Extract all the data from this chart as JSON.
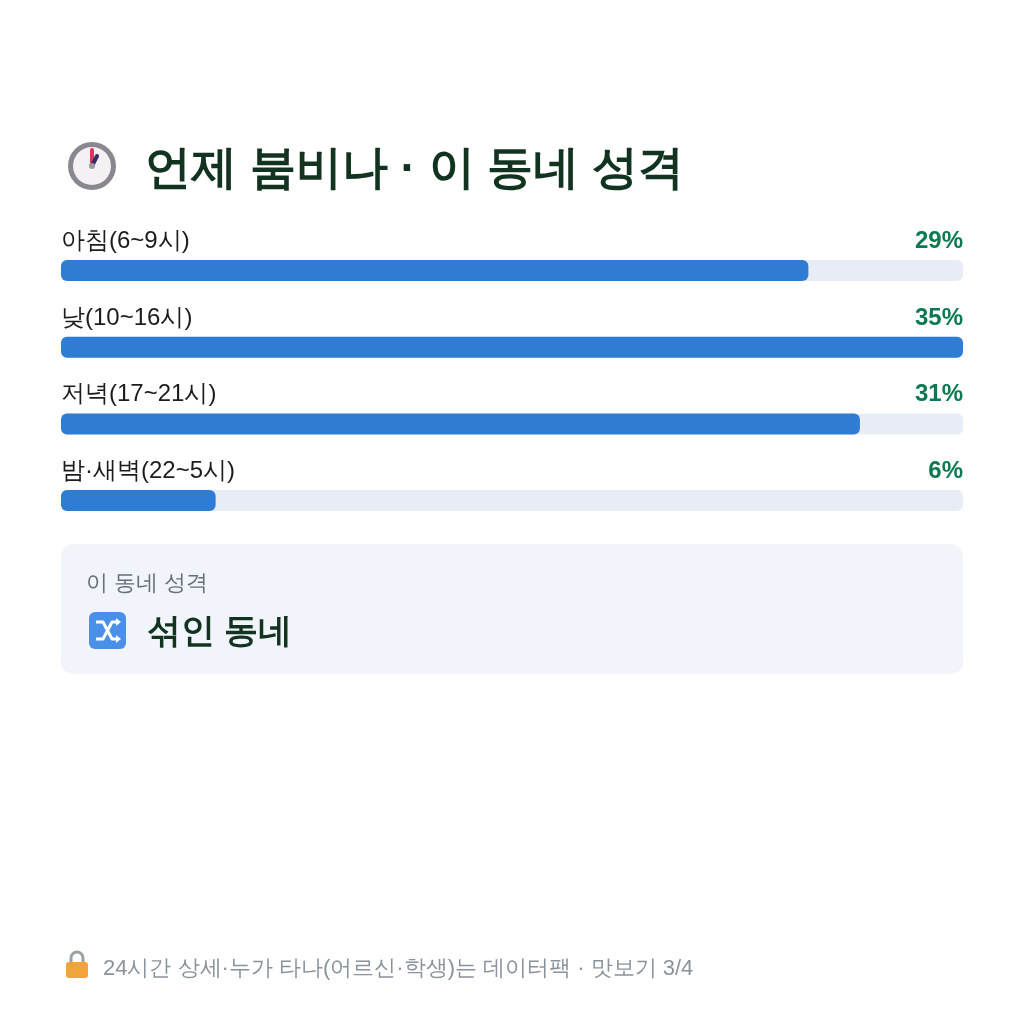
{
  "chart_data": {
    "type": "bar",
    "orientation": "horizontal",
    "title": "언제 붐비나 · 이 동네 성격",
    "categories": [
      "아침(6~9시)",
      "낮(10~16시)",
      "저녁(17~21시)",
      "밤·새벽(22~5시)"
    ],
    "values": [
      29,
      35,
      31,
      6
    ],
    "value_labels": [
      "29%",
      "35%",
      "31%",
      "6%"
    ],
    "color": "#2e7cd3",
    "xlim": [
      0,
      35
    ],
    "annotations": [
      "이 동네 성격",
      "섞인 동네",
      "24시간 상세·누가 타나(어르신·학생)는 데이터팩 · 맛보기 3/4"
    ]
  }
}
